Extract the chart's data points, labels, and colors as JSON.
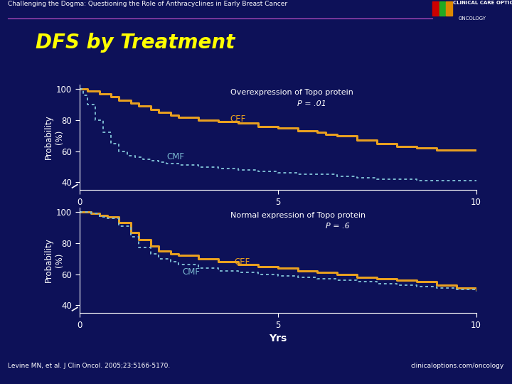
{
  "bg_color": "#0d1158",
  "header_text": "Challenging the Dogma: Questioning the Role of Anthracyclines in Early Breast Cancer",
  "title": "DFS by Treatment",
  "title_color": "#ffff00",
  "cef_color": "#e8a020",
  "cmf_color": "#7ab8d0",
  "ax_label_color": "#ffffff",
  "tick_color": "#ffffff",
  "annotation1_title": "Overexpression of Topo protein",
  "annotation1_p": "P = .01",
  "annotation2_title": "Normal expression of Topo protein",
  "annotation2_p": "P = .6",
  "xlabel": "Yrs",
  "ylabel": "Probability\n(%)",
  "logo_text1": "CLINICAL CARE OPTIONS",
  "logo_text2": "ONCOLOGY",
  "footer_left": "Levine MN, et al. J Clin Oncol. 2005;23:5166-5170.",
  "footer_right": "clinicaloptions.com/oncology",
  "top1_cef_x": [
    0,
    0.2,
    0.5,
    0.8,
    1.0,
    1.3,
    1.5,
    1.8,
    2.0,
    2.3,
    2.5,
    3.0,
    3.5,
    4.0,
    4.5,
    5.0,
    5.5,
    6.0,
    6.2,
    6.5,
    7.0,
    7.5,
    8.0,
    8.5,
    9.0,
    9.5,
    10.0
  ],
  "top1_cef_y": [
    100,
    99,
    97,
    95,
    93,
    91,
    89,
    87,
    85,
    83,
    82,
    80,
    79,
    78,
    76,
    75,
    73,
    72,
    71,
    70,
    67,
    65,
    63,
    62,
    61,
    61,
    61
  ],
  "top1_cmf_x": [
    0,
    0.1,
    0.2,
    0.4,
    0.6,
    0.8,
    1.0,
    1.2,
    1.4,
    1.6,
    1.8,
    2.0,
    2.2,
    2.5,
    3.0,
    3.5,
    4.0,
    4.5,
    5.0,
    5.5,
    6.0,
    6.5,
    7.0,
    7.5,
    8.0,
    8.5,
    9.0,
    9.5,
    10.0
  ],
  "top1_cmf_y": [
    100,
    96,
    90,
    80,
    72,
    65,
    60,
    57,
    56,
    55,
    54,
    53,
    52,
    51,
    50,
    49,
    48,
    47,
    46,
    45,
    45,
    44,
    43,
    42,
    42,
    41,
    41,
    41,
    41
  ],
  "top2_cef_x": [
    0,
    0.15,
    0.3,
    0.5,
    0.7,
    1.0,
    1.3,
    1.5,
    1.8,
    2.0,
    2.3,
    2.5,
    3.0,
    3.5,
    4.0,
    4.5,
    5.0,
    5.5,
    6.0,
    6.5,
    7.0,
    7.5,
    8.0,
    8.5,
    9.0,
    9.5,
    10.0
  ],
  "top2_cef_y": [
    100,
    100,
    99,
    98,
    97,
    93,
    87,
    82,
    78,
    75,
    73,
    72,
    70,
    68,
    66,
    65,
    64,
    62,
    61,
    60,
    58,
    57,
    56,
    55,
    53,
    51,
    50
  ],
  "top2_cmf_x": [
    0,
    0.15,
    0.3,
    0.5,
    0.7,
    1.0,
    1.3,
    1.5,
    1.8,
    2.0,
    2.3,
    2.5,
    3.0,
    3.5,
    4.0,
    4.5,
    5.0,
    5.5,
    6.0,
    6.5,
    7.0,
    7.5,
    8.0,
    8.5,
    9.0,
    9.5,
    10.0
  ],
  "top2_cmf_y": [
    100,
    100,
    99,
    97,
    96,
    91,
    84,
    77,
    73,
    70,
    68,
    66,
    64,
    62,
    61,
    60,
    59,
    58,
    57,
    56,
    55,
    54,
    53,
    52,
    51,
    50,
    49
  ],
  "ylim": [
    35,
    103
  ],
  "xlim": [
    0,
    10
  ],
  "yticks": [
    40,
    60,
    80,
    100
  ],
  "xticks": [
    0,
    5,
    10
  ]
}
